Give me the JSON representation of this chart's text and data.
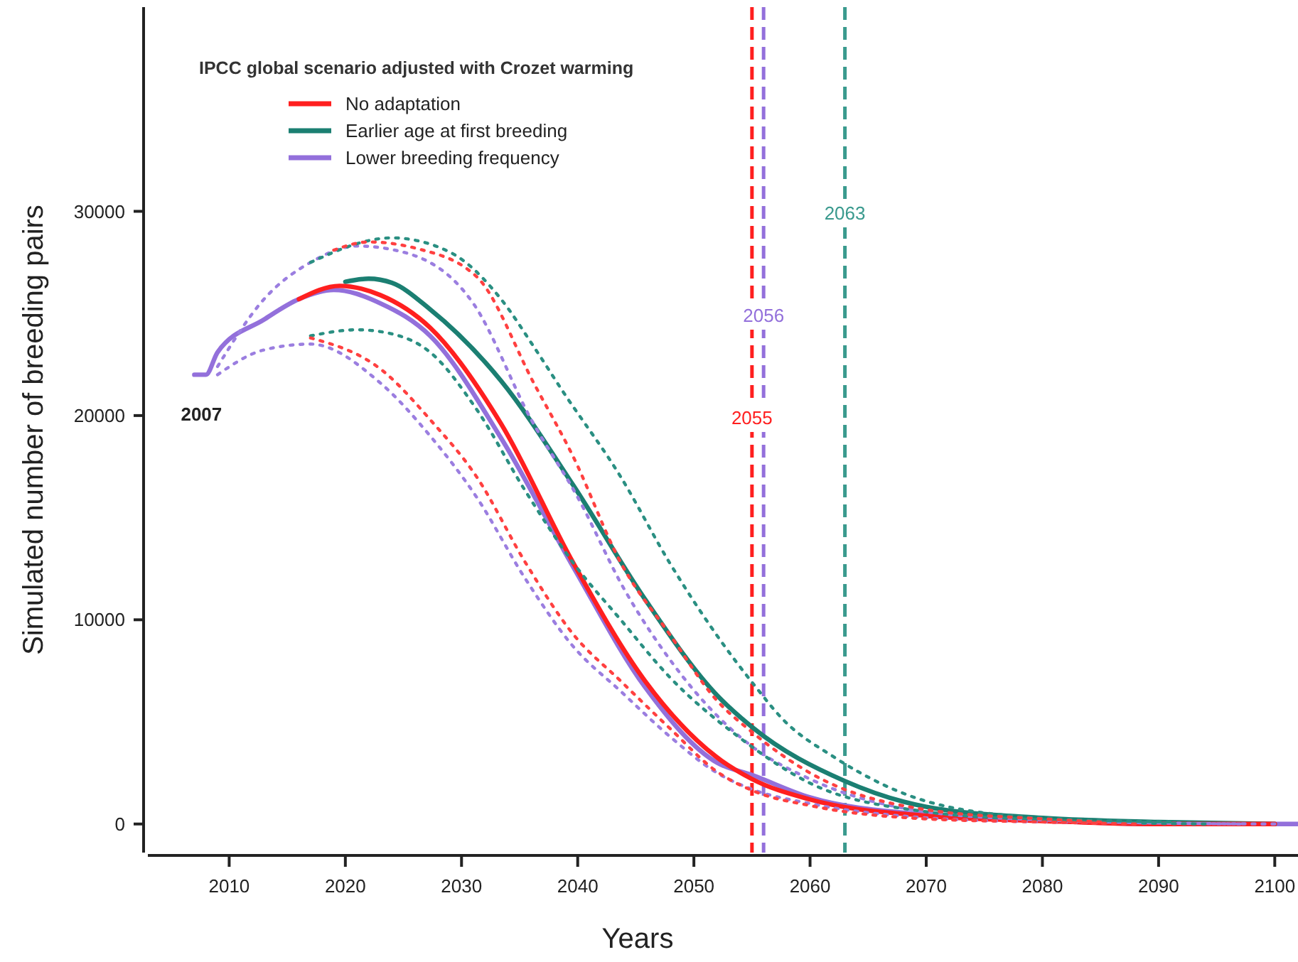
{
  "chart_data": {
    "type": "line",
    "xlabel": "Years",
    "ylabel": "Simulated number of breeding pairs",
    "legend_title": "IPCC global scenario adjusted with Crozet warming",
    "legend": "top left",
    "xlim": [
      2003,
      2102
    ],
    "ylim": [
      -1400,
      40000
    ],
    "xticks": [
      2010,
      2020,
      2030,
      2040,
      2050,
      2060,
      2070,
      2080,
      2090,
      2100
    ],
    "yticks": [
      0,
      10000,
      20000,
      30000
    ],
    "series": [
      {
        "name": "No adaptation",
        "color": "#ff1f1f",
        "line_style": "solid",
        "x": [
          2016,
          2019.5,
          2023,
          2027.3,
          2033.4,
          2039.6,
          2045.8,
          2051.9,
          2055,
          2060,
          2070,
          2080,
          2090,
          2100
        ],
        "values": [
          25700,
          26350,
          25900,
          24300,
          19600,
          12800,
          7000,
          3300,
          2200,
          1200,
          400,
          150,
          0,
          0
        ]
      },
      {
        "name": "Earlier age at first breeding",
        "color": "#1b7f72",
        "line_style": "solid",
        "x": [
          2020,
          2022,
          2024,
          2027.3,
          2033.4,
          2039.6,
          2045.8,
          2052,
          2055,
          2063,
          2070,
          2080,
          2090,
          2100
        ],
        "values": [
          26550,
          26700,
          26500,
          25200,
          21700,
          16600,
          11000,
          6300,
          4750,
          2100,
          840,
          300,
          100,
          0
        ]
      },
      {
        "name": "Lower breeding frequency",
        "color": "#9370db",
        "line_style": "solid",
        "x": [
          2007,
          2008,
          2009,
          2013,
          2016,
          2019,
          2023,
          2027.3,
          2033.4,
          2039.6,
          2045.8,
          2052,
          2055,
          2060,
          2070,
          2080,
          2090,
          2100,
          2102
        ],
        "values": [
          22000,
          22000,
          23100,
          24700,
          25700,
          26150,
          25500,
          23900,
          18900,
          12600,
          6700,
          3000,
          2400,
          1300,
          450,
          170,
          0,
          0,
          0
        ]
      },
      {
        "color": "#ff4040",
        "line_style": "dotted",
        "x": [
          2019,
          2022,
          2026,
          2031.3,
          2036.3,
          2039.6,
          2043.7,
          2047.9,
          2051.9,
          2055,
          2060,
          2070,
          2080,
          2085
        ],
        "values": [
          28100,
          28500,
          28200,
          26800,
          21500,
          18000,
          12800,
          9300,
          6100,
          4500,
          2500,
          700,
          250,
          100
        ]
      },
      {
        "color": "#ff4040",
        "line_style": "dotted",
        "x": [
          2017,
          2023.2,
          2027.3,
          2031.3,
          2035.5,
          2039.6,
          2043.7,
          2047.9,
          2051.9,
          2055.2,
          2060,
          2070,
          2080,
          2088
        ],
        "values": [
          23800,
          22200,
          19800,
          17000,
          12800,
          9300,
          7000,
          4700,
          2600,
          1600,
          900,
          250,
          100,
          0
        ]
      },
      {
        "color": "#2a8f82",
        "line_style": "dotted",
        "x": [
          2017,
          2024,
          2029,
          2033.4,
          2036.3,
          2038.7,
          2043.7,
          2047.9,
          2051.9,
          2055.2,
          2057.7,
          2062,
          2070.4,
          2080,
          2091
        ],
        "values": [
          27500,
          28700,
          28000,
          25700,
          23300,
          21200,
          17000,
          12800,
          9300,
          6800,
          5100,
          3300,
          1050,
          300,
          100
        ]
      },
      {
        "color": "#2a8f82",
        "line_style": "dotted",
        "x": [
          2017,
          2021,
          2024,
          2027.3,
          2031.3,
          2035.5,
          2039.6,
          2043.7,
          2047.9,
          2054,
          2060,
          2070,
          2080,
          2094
        ],
        "values": [
          23900,
          24200,
          24000,
          23100,
          20300,
          16300,
          12800,
          10000,
          7200,
          4200,
          2000,
          600,
          200,
          0
        ]
      },
      {
        "color": "#9b7ee0",
        "line_style": "dotted",
        "x": [
          2009,
          2013,
          2017,
          2021,
          2025,
          2031,
          2036,
          2040,
          2044,
          2048,
          2052,
          2055,
          2060,
          2070,
          2080,
          2097
        ],
        "values": [
          22400,
          25700,
          27500,
          28300,
          28000,
          25500,
          19800,
          16000,
          11500,
          8000,
          5300,
          3800,
          2200,
          600,
          200,
          0
        ]
      },
      {
        "color": "#9b7ee0",
        "line_style": "dotted",
        "x": [
          2009,
          2012.9,
          2017,
          2023,
          2027.3,
          2031.3,
          2035.5,
          2039.6,
          2043.7,
          2047.9,
          2052,
          2055,
          2060,
          2070,
          2080,
          2100
        ],
        "values": [
          22000,
          23200,
          23500,
          21600,
          19000,
          16000,
          12000,
          8700,
          6500,
          4300,
          2500,
          1700,
          1000,
          300,
          100,
          0
        ]
      }
    ],
    "ref_lines": [
      {
        "axis": "x",
        "value": 2055,
        "label": "2055",
        "color": "#ff1f1f",
        "line_style": "dashed"
      },
      {
        "axis": "x",
        "value": 2056,
        "label": "2056",
        "color": "#9370db",
        "line_style": "dashed"
      },
      {
        "axis": "x",
        "value": 2063,
        "label": "2063",
        "color": "#3a9a8e",
        "line_style": "dashed"
      }
    ],
    "annotations": [
      {
        "text": "2007",
        "x": 2007,
        "y": 22000
      }
    ]
  }
}
